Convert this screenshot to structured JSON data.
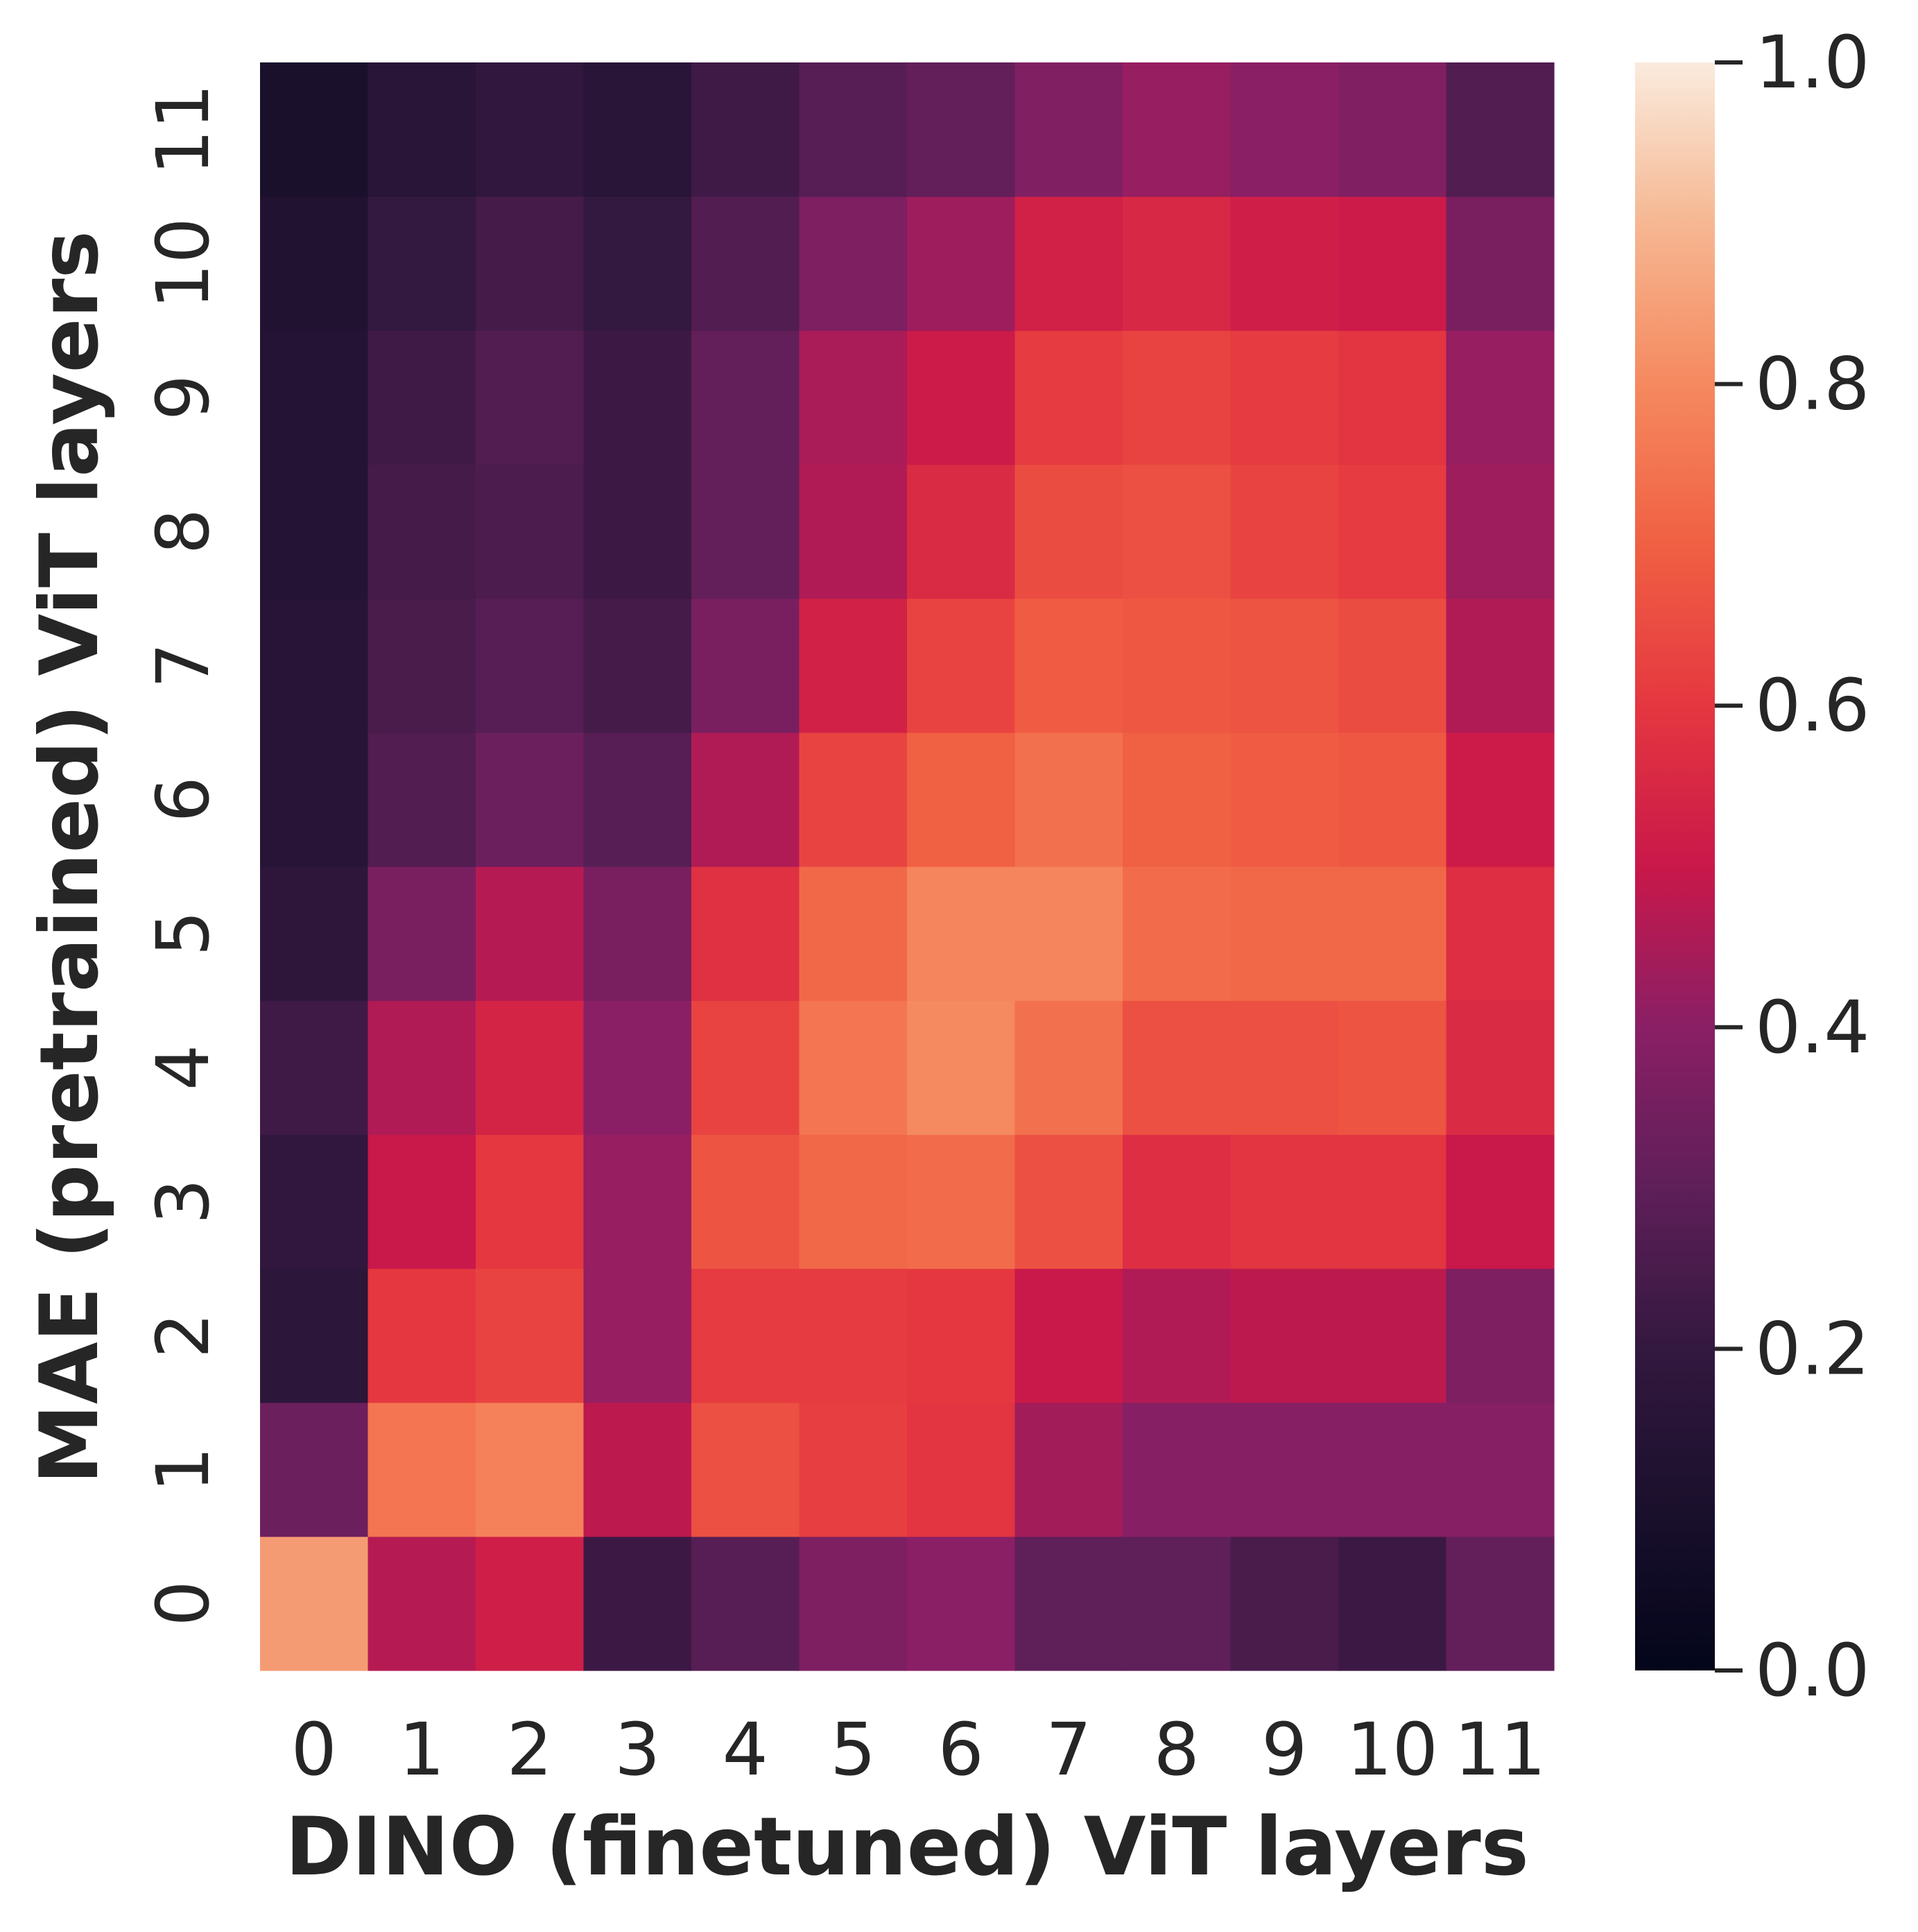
{
  "chart_data": {
    "type": "heatmap",
    "xlabel": "DINO (finetuned) ViT layers",
    "ylabel": "MAE (pretrained) ViT layers",
    "x_categories": [
      "0",
      "1",
      "2",
      "3",
      "4",
      "5",
      "6",
      "7",
      "8",
      "9",
      "10",
      "11"
    ],
    "y_categories": [
      "0",
      "1",
      "2",
      "3",
      "4",
      "5",
      "6",
      "7",
      "8",
      "9",
      "10",
      "11"
    ],
    "values": [
      [
        0.84,
        0.47,
        0.52,
        0.22,
        0.28,
        0.37,
        0.4,
        0.3,
        0.3,
        0.25,
        0.22,
        0.31
      ],
      [
        0.33,
        0.75,
        0.78,
        0.48,
        0.66,
        0.62,
        0.59,
        0.44,
        0.39,
        0.39,
        0.39,
        0.39
      ],
      [
        0.17,
        0.6,
        0.63,
        0.42,
        0.61,
        0.61,
        0.6,
        0.5,
        0.46,
        0.48,
        0.48,
        0.37
      ],
      [
        0.19,
        0.5,
        0.6,
        0.42,
        0.67,
        0.72,
        0.73,
        0.66,
        0.57,
        0.59,
        0.59,
        0.5
      ],
      [
        0.23,
        0.46,
        0.54,
        0.4,
        0.63,
        0.75,
        0.8,
        0.74,
        0.66,
        0.66,
        0.67,
        0.56
      ],
      [
        0.18,
        0.36,
        0.47,
        0.36,
        0.58,
        0.72,
        0.79,
        0.79,
        0.73,
        0.72,
        0.72,
        0.57
      ],
      [
        0.15,
        0.27,
        0.33,
        0.28,
        0.46,
        0.63,
        0.7,
        0.74,
        0.7,
        0.69,
        0.68,
        0.51
      ],
      [
        0.15,
        0.25,
        0.28,
        0.24,
        0.36,
        0.53,
        0.63,
        0.69,
        0.68,
        0.67,
        0.65,
        0.46
      ],
      [
        0.14,
        0.24,
        0.26,
        0.22,
        0.31,
        0.46,
        0.56,
        0.65,
        0.66,
        0.63,
        0.61,
        0.43
      ],
      [
        0.14,
        0.23,
        0.27,
        0.22,
        0.31,
        0.45,
        0.51,
        0.61,
        0.63,
        0.61,
        0.59,
        0.42
      ],
      [
        0.13,
        0.2,
        0.24,
        0.2,
        0.27,
        0.37,
        0.43,
        0.53,
        0.55,
        0.52,
        0.51,
        0.36
      ],
      [
        0.1,
        0.16,
        0.19,
        0.16,
        0.23,
        0.28,
        0.31,
        0.38,
        0.42,
        0.4,
        0.38,
        0.27
      ]
    ],
    "colorbar": {
      "range": [
        0.0,
        1.0
      ],
      "ticks": [
        0.0,
        0.2,
        0.4,
        0.6,
        0.8,
        1.0
      ],
      "tick_labels": [
        "0.0",
        "0.2",
        "0.4",
        "0.6",
        "0.8",
        "1.0"
      ],
      "colormap": "rocket"
    },
    "grid": false,
    "colors": {
      "text": "#262626",
      "background": "#ffffff"
    }
  }
}
